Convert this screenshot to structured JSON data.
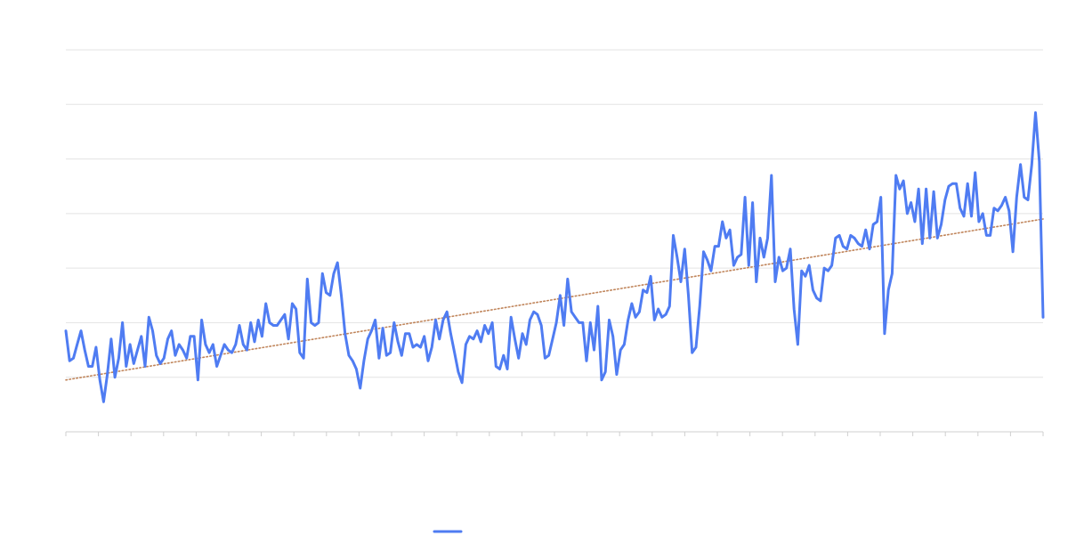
{
  "chart_data": {
    "type": "line",
    "title": "",
    "xlabel": "",
    "ylabel": "",
    "ylim": [
      0,
      7
    ],
    "y_gridlines": [
      0,
      1,
      2,
      3,
      4,
      5,
      6,
      7
    ],
    "x_ticks": 31,
    "grid": true,
    "legend_position": "bottom",
    "series": [
      {
        "name": "",
        "color": "#4f7cf2",
        "values": [
          1.85,
          1.3,
          1.35,
          1.6,
          1.85,
          1.5,
          1.2,
          1.2,
          1.55,
          0.95,
          0.55,
          1.05,
          1.7,
          1.0,
          1.35,
          2.0,
          1.2,
          1.6,
          1.25,
          1.5,
          1.75,
          1.2,
          2.1,
          1.85,
          1.4,
          1.25,
          1.35,
          1.7,
          1.85,
          1.4,
          1.6,
          1.5,
          1.35,
          1.75,
          1.75,
          0.95,
          2.05,
          1.6,
          1.45,
          1.6,
          1.2,
          1.4,
          1.6,
          1.5,
          1.45,
          1.6,
          1.95,
          1.6,
          1.5,
          2.0,
          1.65,
          2.05,
          1.75,
          2.35,
          2.0,
          1.95,
          1.95,
          2.05,
          2.15,
          1.7,
          2.35,
          2.25,
          1.45,
          1.35,
          2.8,
          2.0,
          1.95,
          2.0,
          2.9,
          2.55,
          2.5,
          2.9,
          3.1,
          2.5,
          1.8,
          1.4,
          1.3,
          1.15,
          0.8,
          1.3,
          1.7,
          1.85,
          2.05,
          1.35,
          1.9,
          1.4,
          1.45,
          2.0,
          1.65,
          1.4,
          1.8,
          1.8,
          1.55,
          1.6,
          1.55,
          1.75,
          1.3,
          1.55,
          2.05,
          1.7,
          2.05,
          2.2,
          1.8,
          1.45,
          1.1,
          0.9,
          1.6,
          1.75,
          1.7,
          1.85,
          1.65,
          1.95,
          1.8,
          2.0,
          1.2,
          1.15,
          1.4,
          1.15,
          2.1,
          1.7,
          1.35,
          1.8,
          1.6,
          2.05,
          2.2,
          2.15,
          1.95,
          1.35,
          1.4,
          1.7,
          2.0,
          2.5,
          1.95,
          2.8,
          2.2,
          2.1,
          2.0,
          2.0,
          1.3,
          2.0,
          1.5,
          2.3,
          0.95,
          1.1,
          2.05,
          1.75,
          1.05,
          1.5,
          1.6,
          2.05,
          2.35,
          2.1,
          2.2,
          2.6,
          2.55,
          2.85,
          2.05,
          2.25,
          2.1,
          2.15,
          2.3,
          3.6,
          3.2,
          2.75,
          3.35,
          2.5,
          1.45,
          1.55,
          2.3,
          3.3,
          3.15,
          2.95,
          3.4,
          3.4,
          3.85,
          3.55,
          3.7,
          3.05,
          3.2,
          3.25,
          4.3,
          3.05,
          4.2,
          2.75,
          3.55,
          3.2,
          3.55,
          4.7,
          2.75,
          3.2,
          2.95,
          3.0,
          3.35,
          2.25,
          1.6,
          2.95,
          2.85,
          3.05,
          2.6,
          2.45,
          2.4,
          3.0,
          2.95,
          3.05,
          3.55,
          3.6,
          3.4,
          3.35,
          3.6,
          3.55,
          3.45,
          3.4,
          3.7,
          3.35,
          3.8,
          3.85,
          4.3,
          1.8,
          2.6,
          2.9,
          4.7,
          4.45,
          4.6,
          4.0,
          4.2,
          3.85,
          4.45,
          3.45,
          4.45,
          3.55,
          4.4,
          3.55,
          3.8,
          4.25,
          4.5,
          4.55,
          4.55,
          4.1,
          3.95,
          4.55,
          3.95,
          4.75,
          3.85,
          4.0,
          3.6,
          3.6,
          4.1,
          4.05,
          4.15,
          4.3,
          4.05,
          3.3,
          4.3,
          4.9,
          4.3,
          4.25,
          4.9,
          5.85,
          4.95,
          2.1
        ],
        "trendline": {
          "start": 0.95,
          "end": 3.9,
          "color": "#c0855b"
        }
      }
    ]
  }
}
